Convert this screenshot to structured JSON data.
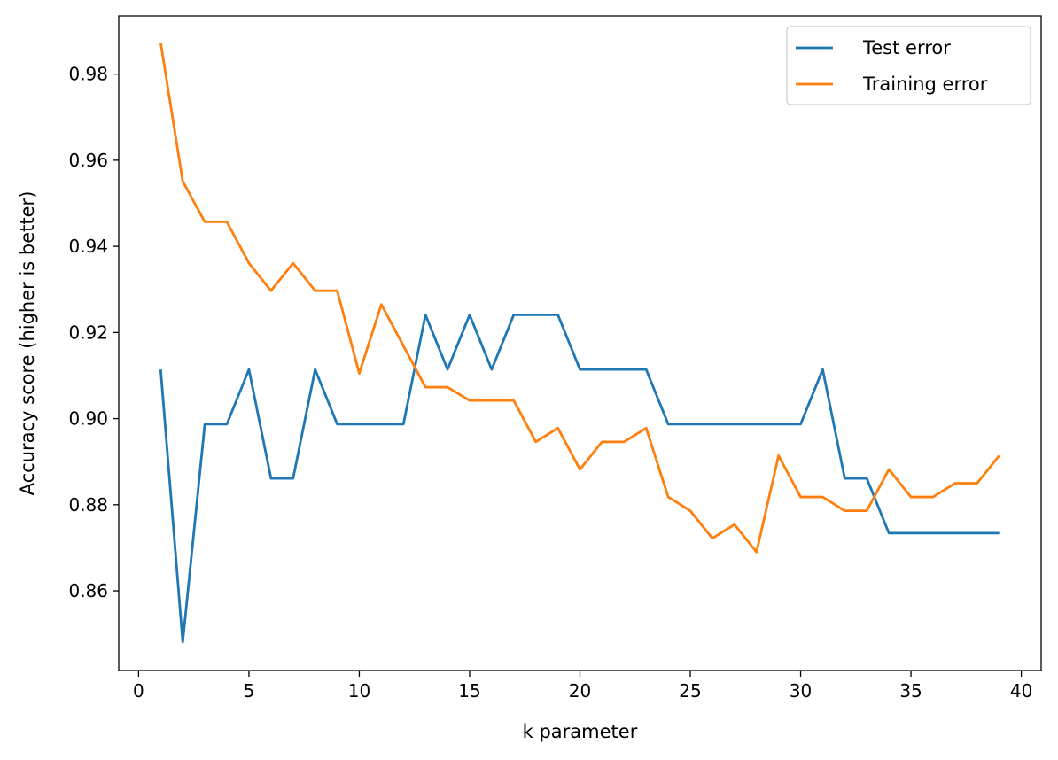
{
  "chart_data": {
    "type": "line",
    "xlabel": "k parameter",
    "ylabel": "Accuracy score (higher is better)",
    "xlim": [
      -0.9,
      40.9
    ],
    "ylim": [
      0.8415,
      0.9935
    ],
    "xticks": [
      0,
      5,
      10,
      15,
      20,
      25,
      30,
      35,
      40
    ],
    "yticks": [
      0.86,
      0.88,
      0.9,
      0.92,
      0.94,
      0.96,
      0.98
    ],
    "legend_position": "top-right",
    "grid": false,
    "x": [
      1,
      2,
      3,
      4,
      5,
      6,
      7,
      8,
      9,
      10,
      11,
      12,
      13,
      14,
      15,
      16,
      17,
      18,
      19,
      20,
      21,
      22,
      23,
      24,
      25,
      26,
      27,
      28,
      29,
      30,
      31,
      32,
      33,
      34,
      35,
      36,
      37,
      38,
      39
    ],
    "series": [
      {
        "name": "Test error",
        "color": "#1f77b4",
        "values": [
          0.9114,
          0.8481,
          0.8987,
          0.8987,
          0.9114,
          0.8861,
          0.8861,
          0.9114,
          0.8987,
          0.8987,
          0.8987,
          0.8987,
          0.9241,
          0.9114,
          0.9241,
          0.9114,
          0.9241,
          0.9241,
          0.9241,
          0.9114,
          0.9114,
          0.9114,
          0.9114,
          0.8987,
          0.8987,
          0.8987,
          0.8987,
          0.8987,
          0.8987,
          0.8987,
          0.9114,
          0.8861,
          0.8861,
          0.8734,
          0.8734,
          0.8734,
          0.8734,
          0.8734,
          0.8734
        ]
      },
      {
        "name": "Training error",
        "color": "#ff7f0e",
        "values": [
          0.9873,
          0.9551,
          0.9457,
          0.9457,
          0.9361,
          0.9297,
          0.9361,
          0.9297,
          0.9297,
          0.9105,
          0.9265,
          0.9169,
          0.9073,
          0.9073,
          0.9042,
          0.9042,
          0.9042,
          0.8946,
          0.8978,
          0.8882,
          0.8946,
          0.8946,
          0.8978,
          0.8818,
          0.8786,
          0.8722,
          0.8754,
          0.869,
          0.8914,
          0.8818,
          0.8818,
          0.8786,
          0.8786,
          0.8882,
          0.8818,
          0.8818,
          0.885,
          0.885,
          0.8914
        ]
      }
    ]
  }
}
